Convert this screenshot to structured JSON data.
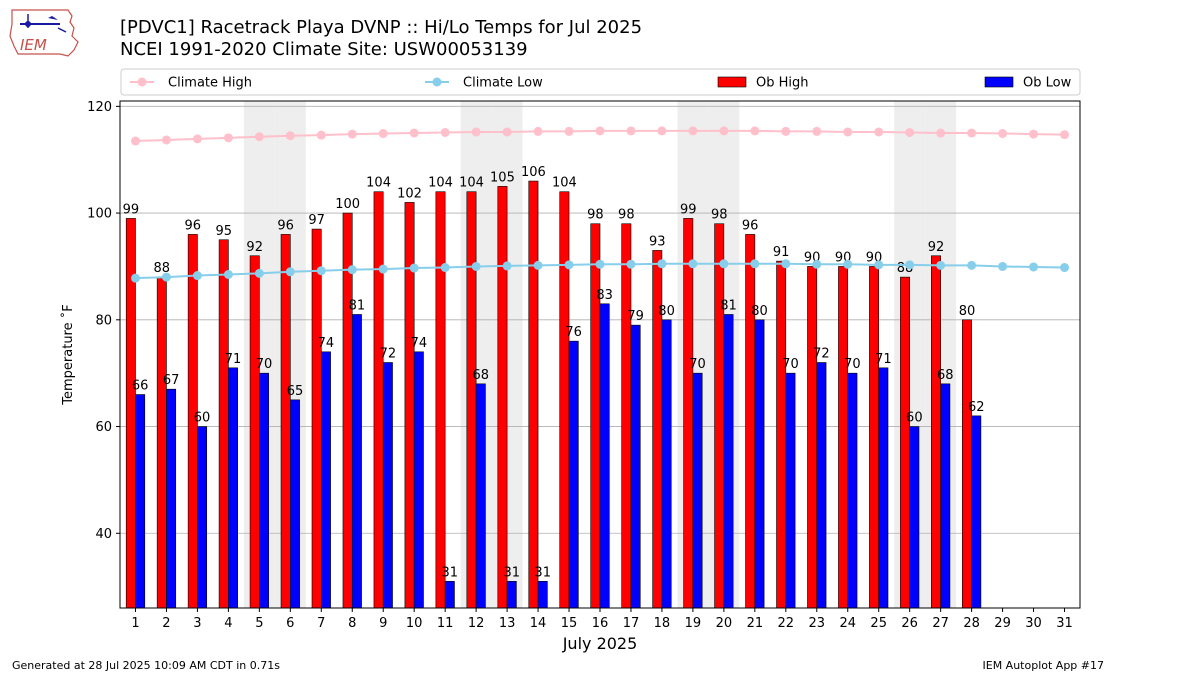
{
  "logo": {
    "text": "IEM"
  },
  "header": {
    "title_line1": "[PDVC1] Racetrack Playa DVNP :: Hi/Lo Temps for Jul 2025",
    "title_line2": "NCEI 1991-2020 Climate Site: USW00053139"
  },
  "footer": {
    "generated": "Generated at 28 Jul 2025 10:09 AM CDT in 0.71s",
    "app": "IEM Autoplot App #17"
  },
  "colors": {
    "ob_high": "#ff0000",
    "ob_low": "#0000ff",
    "climate_high": "#ffc0cb",
    "climate_low": "#87ceeb",
    "weekend_shade": "#eeeeee"
  },
  "chart_data": {
    "type": "bar",
    "xlabel": "July 2025",
    "ylabel": "Temperature ˚F",
    "ylim": [
      26,
      121
    ],
    "yticks": [
      40,
      60,
      80,
      100,
      120
    ],
    "xlim": [
      0.5,
      31.5
    ],
    "grid": "horizontal",
    "legend_placement": "top",
    "categories": [
      "1",
      "2",
      "3",
      "4",
      "5",
      "6",
      "7",
      "8",
      "9",
      "10",
      "11",
      "12",
      "13",
      "14",
      "15",
      "16",
      "17",
      "18",
      "19",
      "20",
      "21",
      "22",
      "23",
      "24",
      "25",
      "26",
      "27",
      "28",
      "29",
      "30",
      "31"
    ],
    "shaded_days": [
      5,
      6,
      12,
      13,
      19,
      20,
      26,
      27
    ],
    "series": [
      {
        "name": "Ob High",
        "kind": "bar",
        "values": [
          99,
          88,
          96,
          95,
          92,
          96,
          97,
          100,
          104,
          102,
          104,
          104,
          105,
          106,
          104,
          98,
          98,
          93,
          99,
          98,
          96,
          91,
          90,
          90,
          90,
          88,
          92,
          80,
          null,
          null,
          null
        ]
      },
      {
        "name": "Ob Low",
        "kind": "bar",
        "values": [
          66,
          67,
          60,
          71,
          70,
          65,
          74,
          81,
          72,
          74,
          31,
          68,
          31,
          31,
          76,
          83,
          79,
          80,
          70,
          81,
          80,
          70,
          72,
          70,
          71,
          60,
          68,
          62,
          null,
          null,
          null
        ]
      },
      {
        "name": "Climate High",
        "kind": "line",
        "values": [
          113.5,
          113.7,
          113.9,
          114.1,
          114.3,
          114.5,
          114.6,
          114.8,
          114.9,
          115.0,
          115.1,
          115.2,
          115.2,
          115.3,
          115.3,
          115.4,
          115.4,
          115.4,
          115.4,
          115.4,
          115.4,
          115.3,
          115.3,
          115.2,
          115.2,
          115.1,
          115.0,
          115.0,
          114.9,
          114.8,
          114.7
        ]
      },
      {
        "name": "Climate Low",
        "kind": "line",
        "values": [
          87.8,
          88.0,
          88.3,
          88.5,
          88.7,
          89.0,
          89.2,
          89.4,
          89.5,
          89.7,
          89.8,
          90.0,
          90.1,
          90.2,
          90.3,
          90.4,
          90.4,
          90.5,
          90.5,
          90.5,
          90.5,
          90.5,
          90.4,
          90.4,
          90.3,
          90.3,
          90.2,
          90.2,
          90.0,
          89.9,
          89.8
        ]
      }
    ],
    "legend": [
      "Climate High",
      "Climate Low",
      "Ob High",
      "Ob Low"
    ]
  }
}
